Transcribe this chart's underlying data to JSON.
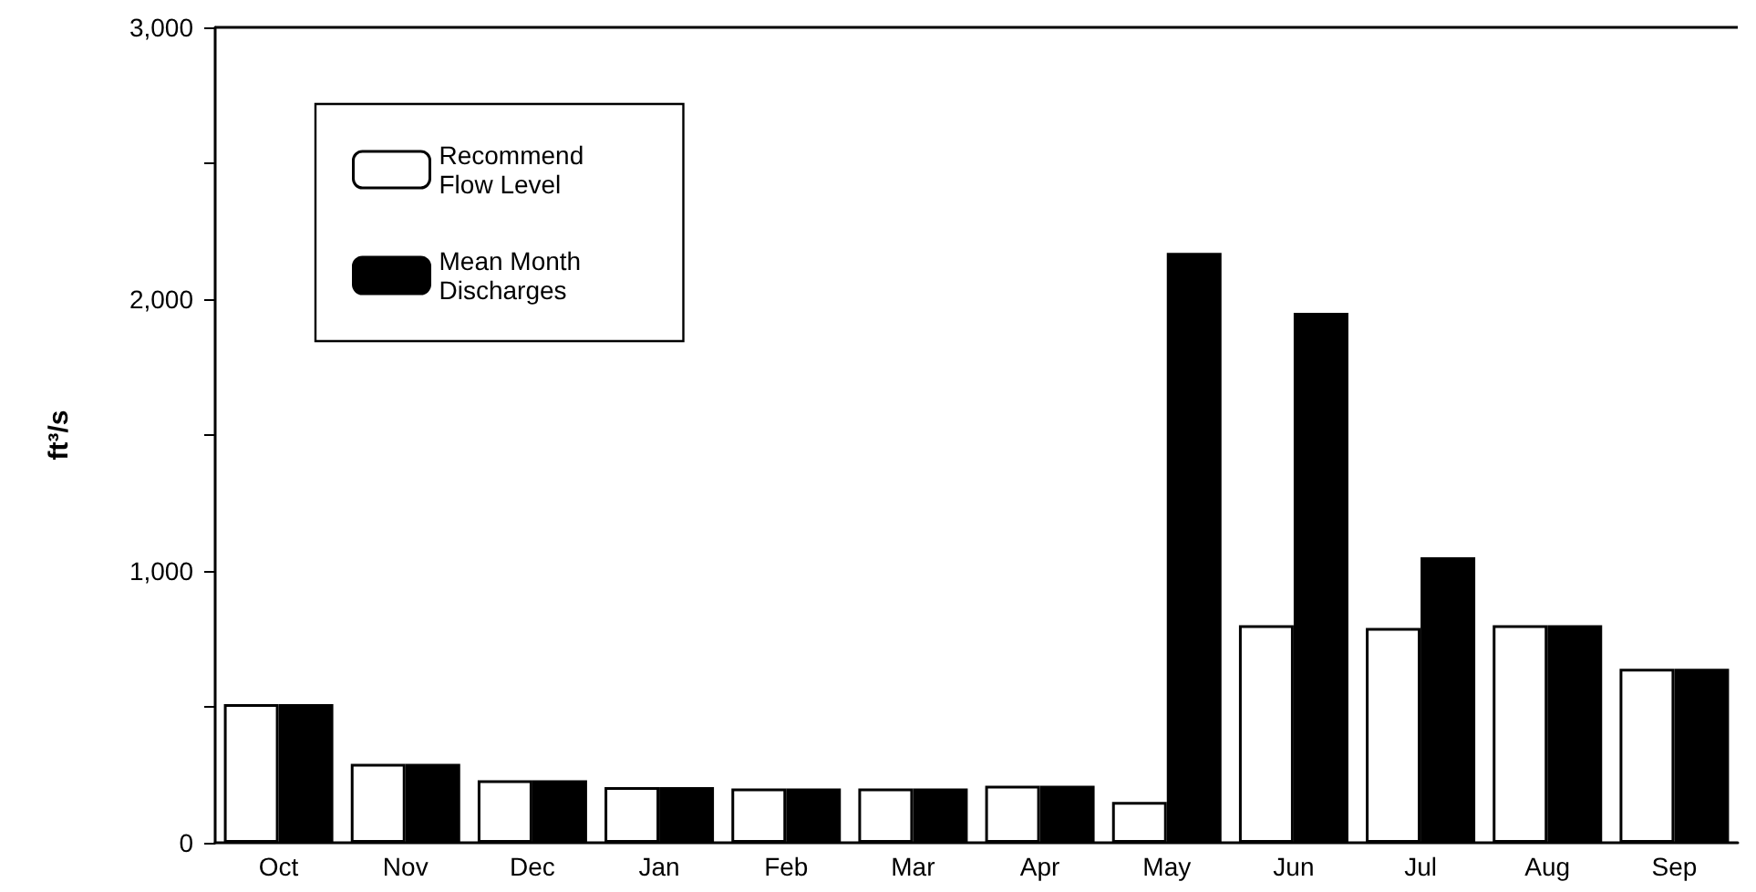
{
  "chart_data": {
    "type": "bar",
    "ylabel": "ft³/s",
    "categories": [
      "Oct",
      "Nov",
      "Dec",
      "Jan",
      "Feb",
      "Mar",
      "Apr",
      "May",
      "Jun",
      "Jul",
      "Aug",
      "Sep"
    ],
    "series": [
      {
        "name": "Recommend Flow Level",
        "color": "#ffffff",
        "values": [
          510,
          290,
          230,
          205,
          200,
          200,
          210,
          150,
          800,
          790,
          800,
          640
        ]
      },
      {
        "name": "Mean Month Discharges",
        "color": "#000000",
        "values": [
          510,
          290,
          230,
          205,
          200,
          200,
          210,
          2170,
          1950,
          1050,
          800,
          640
        ]
      }
    ],
    "ylim": [
      0,
      3000
    ],
    "yticks": [
      0,
      {
        "value": 500,
        "label": null
      },
      {
        "value": 1000,
        "label": "1,000"
      },
      {
        "value": 1500,
        "label": null
      },
      {
        "value": 2000,
        "label": "2,000"
      },
      {
        "value": 2500,
        "label": null
      },
      {
        "value": 3000,
        "label": "3,000"
      }
    ],
    "grid": false,
    "legend": "top left"
  }
}
